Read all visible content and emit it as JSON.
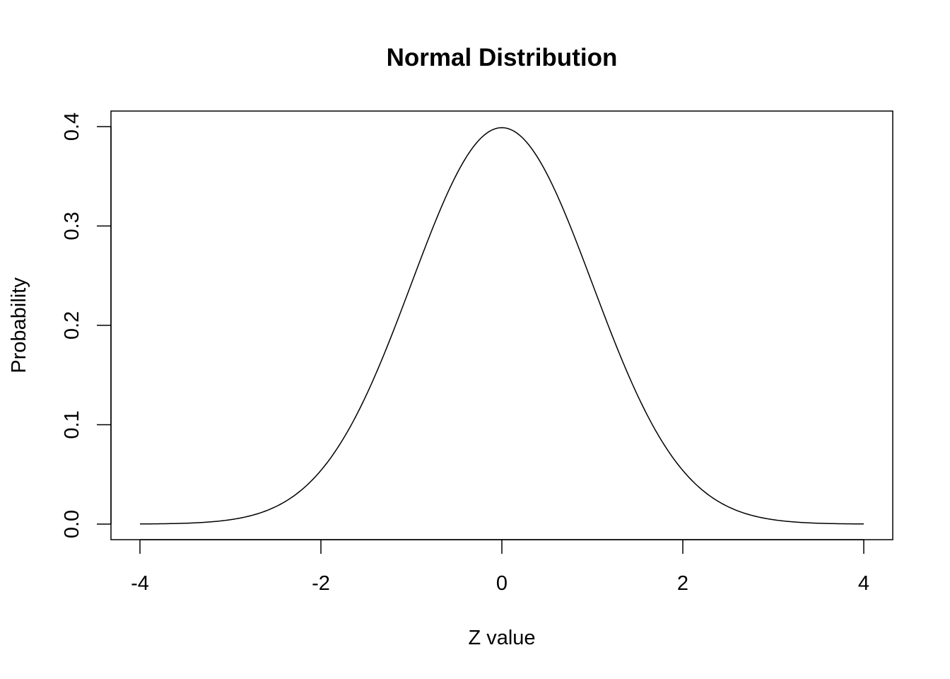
{
  "chart_data": {
    "type": "line",
    "title": "Normal Distribution",
    "xlabel": "Z value",
    "ylabel": "Probability",
    "xlim": [
      -4,
      4
    ],
    "ylim": [
      0,
      0.4
    ],
    "x_ticks": [
      -4,
      -2,
      0,
      2,
      4
    ],
    "x_tick_labels": [
      "-4",
      "-2",
      "0",
      "2",
      "4"
    ],
    "y_ticks": [
      0.0,
      0.1,
      0.2,
      0.3,
      0.4
    ],
    "y_tick_labels": [
      "0.0",
      "0.1",
      "0.2",
      "0.3",
      "0.4"
    ],
    "grid": false,
    "line_color": "#000000",
    "series": [
      {
        "x": [
          -4.0,
          -3.8,
          -3.6,
          -3.4,
          -3.2,
          -3.0,
          -2.8,
          -2.6,
          -2.4,
          -2.2,
          -2.0,
          -1.8,
          -1.6,
          -1.4,
          -1.2,
          -1.0,
          -0.8,
          -0.6,
          -0.4,
          -0.2,
          0.0,
          0.2,
          0.4,
          0.6,
          0.8,
          1.0,
          1.2,
          1.4,
          1.6,
          1.8,
          2.0,
          2.2,
          2.4,
          2.6,
          2.8,
          3.0,
          3.2,
          3.4,
          3.6,
          3.8,
          4.0
        ],
        "y": [
          0.0001,
          0.0003,
          0.0006,
          0.0012,
          0.0024,
          0.0044,
          0.0079,
          0.0136,
          0.0224,
          0.0355,
          0.054,
          0.079,
          0.1109,
          0.1497,
          0.1942,
          0.242,
          0.2897,
          0.3332,
          0.3683,
          0.391,
          0.3989,
          0.391,
          0.3683,
          0.3332,
          0.2897,
          0.242,
          0.1942,
          0.1497,
          0.1109,
          0.079,
          0.054,
          0.0355,
          0.0224,
          0.0136,
          0.0079,
          0.0044,
          0.0024,
          0.0012,
          0.0006,
          0.0003,
          0.0001
        ]
      }
    ]
  }
}
